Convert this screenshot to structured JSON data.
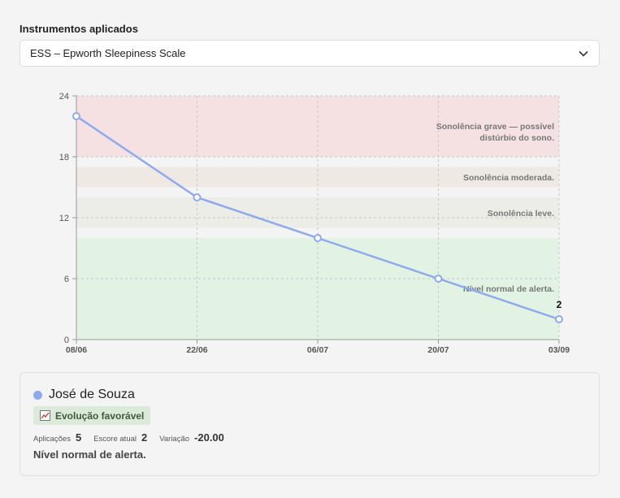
{
  "instruments": {
    "label": "Instrumentos aplicados",
    "selected": "ESS – Epworth Sleepiness Scale"
  },
  "chart_data": {
    "type": "line",
    "x": [
      "08/06",
      "22/06",
      "06/07",
      "20/07",
      "03/09"
    ],
    "series": [
      {
        "values": [
          22,
          14,
          10,
          6,
          2
        ],
        "color": "#8eaaee"
      }
    ],
    "ylim": [
      0,
      24
    ],
    "yticks": [
      0,
      6,
      12,
      18,
      24
    ],
    "grid": true,
    "last_point_label": "2",
    "bands": [
      {
        "from": 18,
        "to": 24,
        "label": "Sonolência grave — possível distúrbio do sono.",
        "color": "#f5e1e1"
      },
      {
        "from": 15,
        "to": 17,
        "label": "Sonolência moderada.",
        "color": "#efe9e4"
      },
      {
        "from": 11,
        "to": 14,
        "label": "Sonolência leve.",
        "color": "#ebede6"
      },
      {
        "from": 0,
        "to": 10,
        "label": "Nível normal de alerta.",
        "color": "#e2f3e3"
      }
    ]
  },
  "patient": {
    "name": "José de Souza",
    "dot_color": "#8eaaee",
    "badge": "Evolução favorável",
    "badge_icon": "trend-chart-icon",
    "applications_label": "Aplicações",
    "applications_value": "5",
    "current_score_label": "Escore atual",
    "current_score_value": "2",
    "variation_label": "Variação",
    "variation_value": "-20.00",
    "status": "Nível normal de alerta."
  }
}
